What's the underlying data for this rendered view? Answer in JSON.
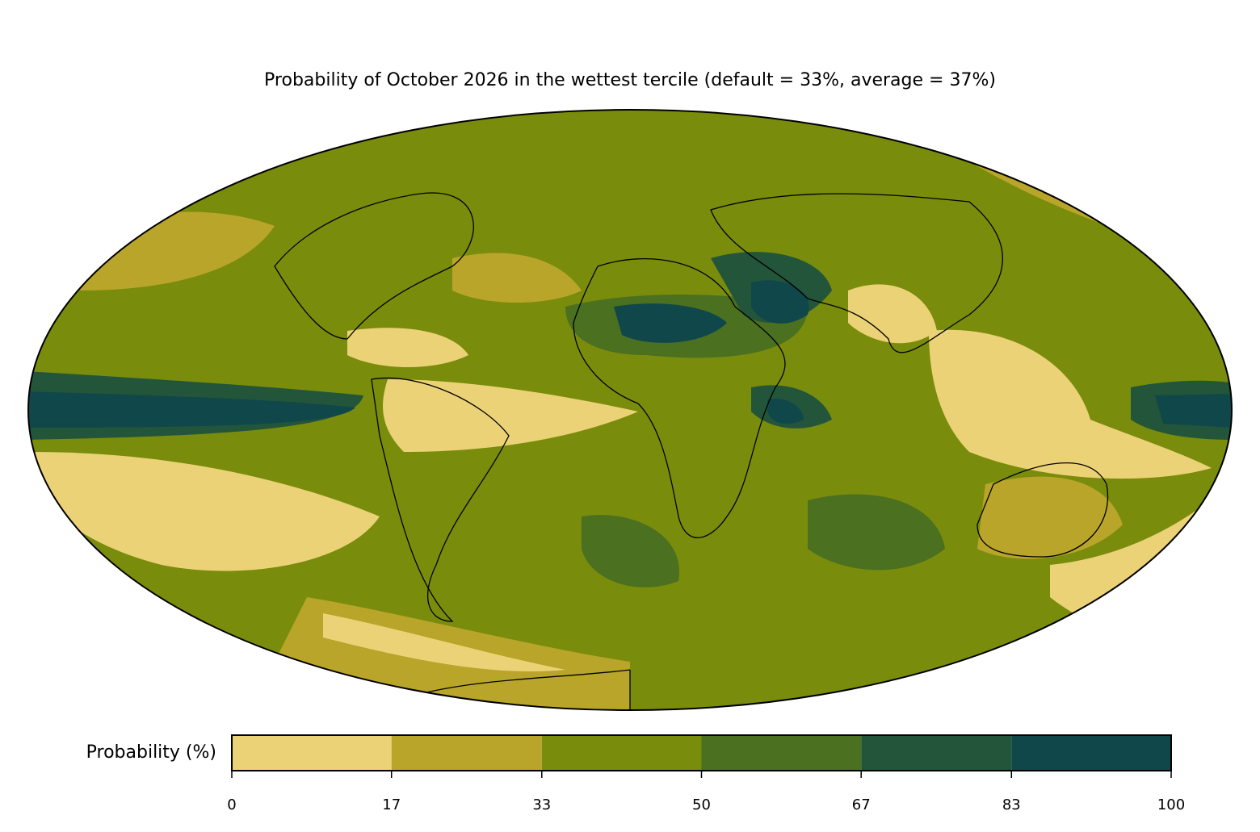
{
  "map": {
    "title": "Probability of October 2026 in the wettest tercile (default = 33%, average = 37%)",
    "colorbar": {
      "label": "Probability (%)",
      "ticks": [
        0,
        17,
        33,
        50,
        67,
        83,
        100
      ],
      "colors": [
        "#ecd276",
        "#b8a52a",
        "#7a8c0c",
        "#4a7020",
        "#23553a",
        "#10474a"
      ]
    }
  }
}
